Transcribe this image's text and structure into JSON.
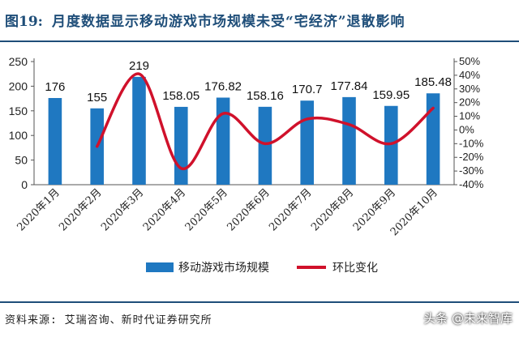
{
  "figure": {
    "number": "图19:",
    "title": "月度数据显示移动游戏市场规模未受“宅经济”退散影响"
  },
  "source": "资料来源: 艾瑞咨询、新时代证券研究所",
  "watermark": "头条 @未来智库",
  "colors": {
    "bar": "#1f78c1",
    "line": "#d0112b",
    "title": "#1f4e79"
  },
  "chart_data": {
    "type": "bar",
    "categories": [
      "2020年1月",
      "2020年2月",
      "2020年3月",
      "2020年4月",
      "2020年5月",
      "2020年6月",
      "2020年7月",
      "2020年8月",
      "2020年9月",
      "2020年10月"
    ],
    "series": [
      {
        "name": "移动游戏市场规模",
        "type": "bar",
        "axis": "left",
        "values": [
          176,
          155,
          219,
          158.05,
          176.82,
          158.16,
          170.7,
          177.84,
          159.95,
          185.48
        ],
        "labels": [
          "176",
          "155",
          "219",
          "158.05",
          "176.82",
          "158.16",
          "170.7",
          "177.84",
          "159.95",
          "185.48"
        ]
      },
      {
        "name": "环比变化",
        "type": "line",
        "axis": "right",
        "values": [
          null,
          -12,
          41,
          -28,
          12,
          -10,
          8,
          4,
          -10,
          16
        ]
      }
    ],
    "y_left": {
      "ylim": [
        0,
        250
      ],
      "ticks": [
        "0",
        "50",
        "100",
        "150",
        "200",
        "250"
      ]
    },
    "y_right": {
      "ylim": [
        -40,
        50
      ],
      "ticks": [
        "-40%",
        "-30%",
        "-20%",
        "-10%",
        "0%",
        "10%",
        "20%",
        "30%",
        "40%",
        "50%"
      ]
    },
    "legend_position": "bottom",
    "grid": false
  }
}
